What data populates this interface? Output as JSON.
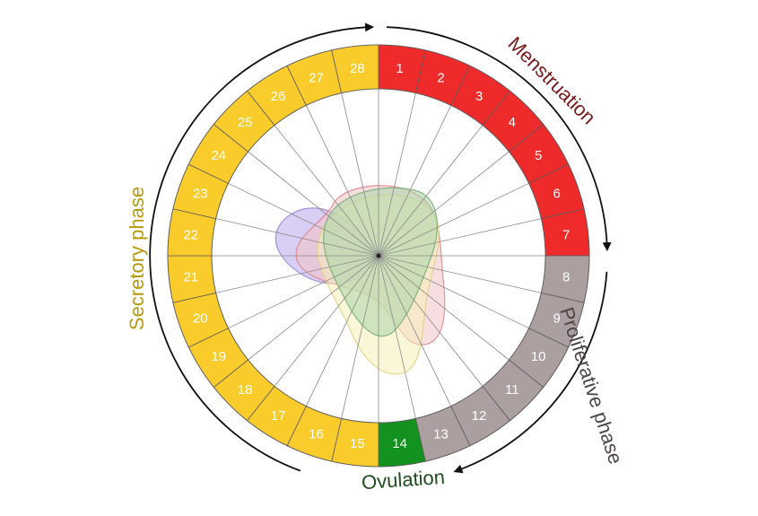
{
  "phases": {
    "menstruation": {
      "label": "Menstruation",
      "color": "#7a1a1a",
      "segment_color": "#ee2a2a",
      "days": [
        1,
        7
      ]
    },
    "proliferative": {
      "label": "Proliferative phase",
      "color": "#4d4446",
      "segment_color": "#ab9fa0",
      "days": [
        8,
        13
      ]
    },
    "ovulation": {
      "label": "Ovulation",
      "color": "#1e4d1e",
      "segment_color": "#13921f",
      "days": [
        14,
        14
      ]
    },
    "secretory": {
      "label": "Secretory phase",
      "color": "#b89a10",
      "segment_color": "#f9cc2c",
      "days": [
        15,
        28
      ]
    }
  },
  "days": [
    "1",
    "2",
    "3",
    "4",
    "5",
    "6",
    "7",
    "8",
    "9",
    "10",
    "11",
    "12",
    "13",
    "14",
    "15",
    "16",
    "17",
    "18",
    "19",
    "20",
    "21",
    "22",
    "23",
    "24",
    "25",
    "26",
    "27",
    "28"
  ],
  "hormone_shapes": [
    {
      "id": "purple",
      "fill": "#b9a6ea",
      "stroke": "#8f7cd0"
    },
    {
      "id": "red",
      "fill": "#f3c3c6",
      "stroke": "#d77f87"
    },
    {
      "id": "yellow",
      "fill": "#f6f1b9",
      "stroke": "#dcd07a"
    },
    {
      "id": "green",
      "fill": "#a8d5a8",
      "stroke": "#6da86d"
    }
  ]
}
